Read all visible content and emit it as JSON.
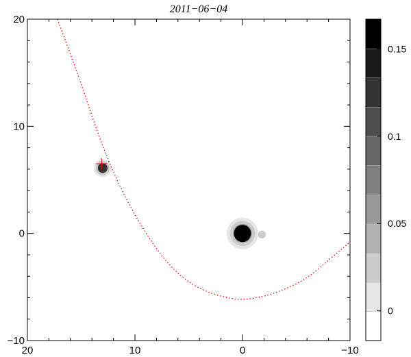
{
  "chart_data": {
    "type": "heatmap",
    "title": "2011−06−04",
    "xlabel": "",
    "ylabel": "",
    "xlim": [
      20,
      -10
    ],
    "ylim": [
      -10,
      20
    ],
    "x_ticks": [
      20,
      10,
      0,
      -10
    ],
    "x_tick_labels": [
      "20",
      "10",
      "0",
      "−10"
    ],
    "y_ticks": [
      -10,
      0,
      10,
      20
    ],
    "y_tick_labels": [
      "−10",
      "0",
      "10",
      "20"
    ],
    "grid": false,
    "colormap": "grayscale (white to black)",
    "colorbar": {
      "range": [
        -0.017,
        0.167
      ],
      "levels": 11,
      "ticks": [
        0,
        0.05,
        0.1,
        0.15
      ],
      "tick_labels": [
        "0",
        "0.05",
        "0.1",
        "0.15"
      ]
    },
    "sources": [
      {
        "x": 0.0,
        "y": 0.0,
        "peak": 0.167,
        "radius": 0.8
      },
      {
        "x": 13.0,
        "y": 6.1,
        "peak": 0.12,
        "radius": 0.45
      },
      {
        "x": -1.8,
        "y": -0.1,
        "peak": 0.02,
        "radius": 0.35
      }
    ],
    "marker": {
      "symbol": "+",
      "x": 13.1,
      "y": 6.5,
      "color": "#ff0000"
    },
    "curve": {
      "style": "dotted",
      "color": "#ff0000",
      "points": [
        [
          17.2,
          20
        ],
        [
          15.0,
          14.0
        ],
        [
          13.0,
          8.0
        ],
        [
          11.0,
          3.5
        ],
        [
          9.0,
          0.0
        ],
        [
          7.0,
          -2.8
        ],
        [
          5.0,
          -4.6
        ],
        [
          3.0,
          -5.6
        ],
        [
          1.0,
          -6.1
        ],
        [
          0.0,
          -6.2
        ],
        [
          -2.0,
          -5.9
        ],
        [
          -4.0,
          -5.2
        ],
        [
          -6.0,
          -4.2
        ],
        [
          -8.0,
          -2.5
        ],
        [
          -10.0,
          -0.8
        ]
      ]
    }
  }
}
